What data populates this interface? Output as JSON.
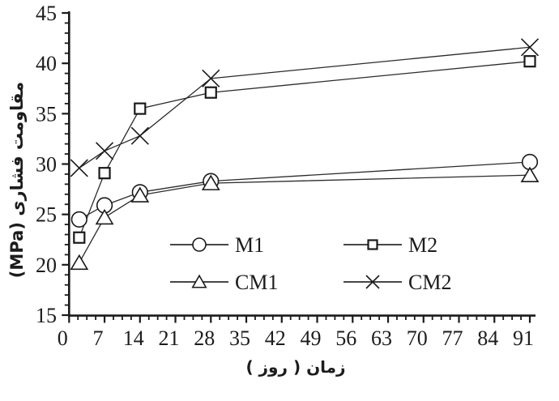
{
  "figure": {
    "background": "#ffffff"
  },
  "chart_data": {
    "type": "line",
    "title": "",
    "xlabel": "زمان ( روز )",
    "ylabel": "مقاومت فشاری (MPa)",
    "x": [
      2,
      7,
      14,
      28,
      91
    ],
    "series": [
      {
        "name": "M1",
        "marker": "circle",
        "values": [
          24.5,
          25.9,
          27.2,
          28.3,
          30.2
        ]
      },
      {
        "name": "M2",
        "marker": "square",
        "values": [
          22.7,
          29.1,
          35.5,
          37.1,
          40.2
        ]
      },
      {
        "name": "CM1",
        "marker": "triangle",
        "values": [
          20.2,
          24.7,
          26.9,
          28.1,
          28.9
        ]
      },
      {
        "name": "CM2",
        "marker": "x",
        "values": [
          29.6,
          31.3,
          32.8,
          38.5,
          41.6
        ]
      }
    ],
    "xlim": [
      0,
      91
    ],
    "ylim": [
      15,
      45
    ],
    "x_major_ticks": [
      0,
      7,
      14,
      21,
      28,
      35,
      42,
      49,
      56,
      63,
      70,
      77,
      84,
      91
    ],
    "y_major_ticks": [
      15,
      20,
      25,
      30,
      35,
      40,
      45
    ],
    "x_minor_step": 1.75,
    "y_minor_step": 1,
    "grid": false,
    "legend": {
      "position": "inside-bottom-center",
      "rows": [
        [
          "M1",
          "M2"
        ],
        [
          "CM1",
          "CM2"
        ]
      ]
    },
    "colors": {
      "line": "#2b2b2b",
      "axis": "#1a1a1a",
      "text": "#1c1c1c",
      "marker_fill": "#ffffff"
    }
  }
}
